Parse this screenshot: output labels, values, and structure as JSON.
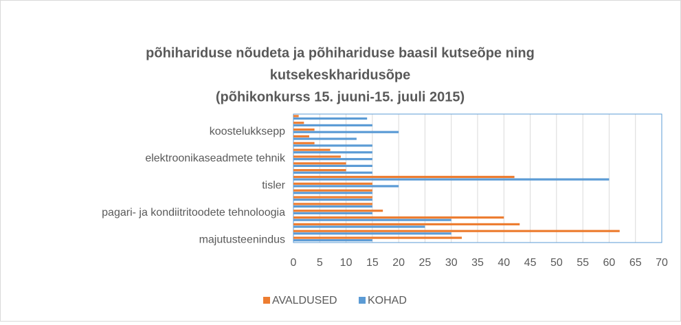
{
  "chart_data": {
    "type": "bar",
    "orientation": "horizontal",
    "title": [
      "põhihariduse nõudeta ja põhihariduse baasil kutseõpe ning",
      "kutsekeskharidusõpe",
      "(põhikonkurss 15. juuni-15. juuli 2015)"
    ],
    "categories": [
      "majutusteenindus",
      null,
      null,
      null,
      "pagari- ja kondiitritoodete tehnoloogia",
      null,
      null,
      null,
      "tisler",
      null,
      null,
      null,
      "elektroonikaseadmete tehnik",
      null,
      null,
      null,
      "koostelukksepp",
      null,
      null
    ],
    "series": [
      {
        "name": "AVALDUSED",
        "color": "#ed7d31",
        "values": [
          32,
          62,
          43,
          40,
          17,
          15,
          15,
          15,
          15,
          42,
          10,
          10,
          9,
          7,
          4,
          3,
          4,
          2,
          1
        ]
      },
      {
        "name": "KOHAD",
        "color": "#5b9bd5",
        "values": [
          15,
          30,
          25,
          30,
          15,
          15,
          15,
          15,
          20,
          60,
          15,
          15,
          15,
          15,
          15,
          12,
          20,
          15,
          14
        ]
      }
    ],
    "xlim": [
      0,
      70
    ],
    "xticks": [
      0,
      5,
      10,
      15,
      20,
      25,
      30,
      35,
      40,
      45,
      50,
      55,
      60,
      65,
      70
    ],
    "grid": true,
    "legend": "bottom"
  }
}
